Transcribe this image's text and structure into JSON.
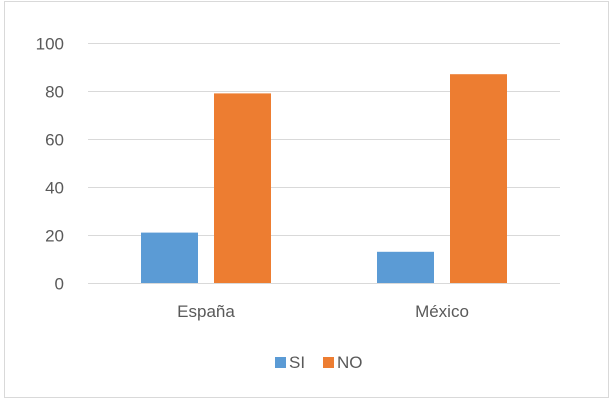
{
  "chart_data": {
    "type": "bar",
    "categories": [
      "España",
      "México"
    ],
    "series": [
      {
        "name": "SI",
        "values": [
          21,
          13
        ],
        "color": "#5B9BD5"
      },
      {
        "name": "NO",
        "values": [
          79,
          87
        ],
        "color": "#ED7D31"
      }
    ],
    "ylim": [
      0,
      100
    ],
    "y_ticks": [
      "0",
      "20",
      "40",
      "60",
      "80",
      "100"
    ],
    "grid": true,
    "legend_position": "bottom",
    "colors": {
      "gridline": "#D9D9D9",
      "axis_text": "#595959",
      "border": "#D9D9D9"
    }
  }
}
